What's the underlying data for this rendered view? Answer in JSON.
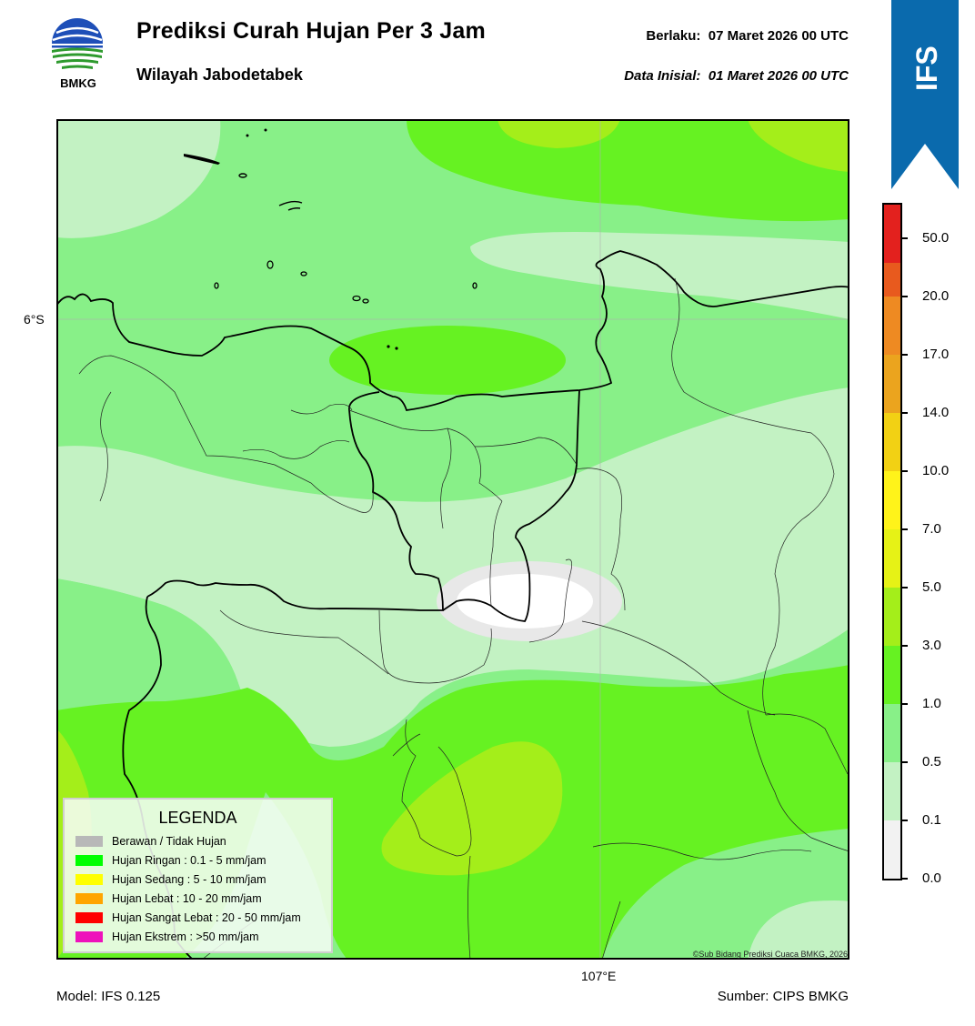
{
  "header": {
    "title": "Prediksi Curah Hujan Per 3 Jam",
    "subtitle": "Wilayah Jabodetabek",
    "valid_label": "Berlaku:",
    "valid_value": "07 Maret 2026 00 UTC",
    "init_label": "Data Inisial:",
    "init_value": "01 Maret 2026 00 UTC",
    "logo_text": "BMKG",
    "badge_text": "IFS"
  },
  "axes": {
    "lat_label": "6°S",
    "lon_label": "107°E"
  },
  "footer": {
    "model": "Model: IFS 0.125",
    "source": "Sumber: CIPS BMKG",
    "credit": "©Sub Bidang Prediksi Cuaca BMKG, 2026"
  },
  "legend": {
    "title": "LEGENDA",
    "items": [
      {
        "label": "Berawan / Tidak Hujan",
        "color": "#b8b8b8"
      },
      {
        "label": "Hujan Ringan : 0.1 - 5 mm/jam",
        "color": "#00ff00"
      },
      {
        "label": "Hujan Sedang : 5 - 10 mm/jam",
        "color": "#ffff00"
      },
      {
        "label": "Hujan Lebat : 10 - 20 mm/jam",
        "color": "#ffa500"
      },
      {
        "label": "Hujan Sangat Lebat : 20 - 50 mm/jam",
        "color": "#ff0000"
      },
      {
        "label": "Hujan Ekstrem : >50 mm/jam",
        "color": "#ee11bb"
      }
    ]
  },
  "colorbar": {
    "ticks": [
      "0.0",
      "0.1",
      "0.5",
      "1.0",
      "3.0",
      "5.0",
      "7.0",
      "10.0",
      "14.0",
      "17.0",
      "20.0",
      "50.0"
    ],
    "colors": [
      "#f2f2f2",
      "#c3f2c3",
      "#88f088",
      "#66f222",
      "#a4ee1a",
      "#e6f216",
      "#fff31a",
      "#f2d114",
      "#eba41e",
      "#ee8a22",
      "#e85a1e",
      "#e3211e",
      "#e221c4"
    ]
  },
  "map_colors": {
    "none": "#f4f4f4",
    "very_light": "#c3f2c3",
    "light": "#88f088",
    "medium": "#66f222",
    "yellow_green": "#a4ee1a",
    "white_core": "#ffffff"
  }
}
